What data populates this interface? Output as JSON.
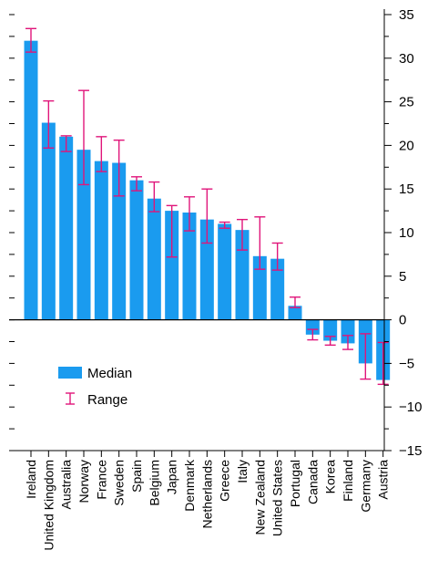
{
  "chart_data": {
    "type": "bar",
    "title": "",
    "xlabel": "",
    "ylabel": "",
    "ylim": [
      -15,
      35
    ],
    "yticks": [
      35,
      30,
      25,
      20,
      15,
      10,
      5,
      0,
      -5,
      -10,
      -15
    ],
    "y_axis_side": "right",
    "grid": false,
    "legend_position": "lower-left",
    "colors": {
      "bar": "#1a9bef",
      "range": "#e0157a",
      "axis": "#000000"
    },
    "categories": [
      "Ireland",
      "United Kingdom",
      "Australia",
      "Norway",
      "France",
      "Sweden",
      "Spain",
      "Belgium",
      "Japan",
      "Denmark",
      "Netherlands",
      "Greece",
      "Italy",
      "New Zealand",
      "United States",
      "Portugal",
      "Canada",
      "Korea",
      "Finland",
      "Germany",
      "Austria"
    ],
    "series": [
      {
        "name": "Median",
        "values": [
          32,
          22.6,
          21,
          19.5,
          18.2,
          18,
          16,
          13.9,
          12.5,
          12.3,
          11.5,
          11,
          10.3,
          7.3,
          7,
          1.6,
          -1.7,
          -2.4,
          -2.7,
          -5,
          -6.9
        ]
      },
      {
        "name": "Range",
        "low": [
          30.7,
          19.7,
          19.3,
          15.5,
          17,
          14.2,
          14.8,
          12.4,
          7.2,
          10.2,
          8.8,
          10.5,
          8,
          5.8,
          5.7,
          1.4,
          -2.3,
          -2.9,
          -3.4,
          -6.8,
          -7.4
        ],
        "high": [
          33.4,
          25.1,
          21.1,
          26.3,
          21,
          20.6,
          16.4,
          15.8,
          13.1,
          14.1,
          15,
          11.2,
          11.5,
          11.8,
          8.8,
          2.6,
          -1.1,
          -1.9,
          -1.8,
          -1.6,
          -2.6
        ]
      }
    ]
  }
}
